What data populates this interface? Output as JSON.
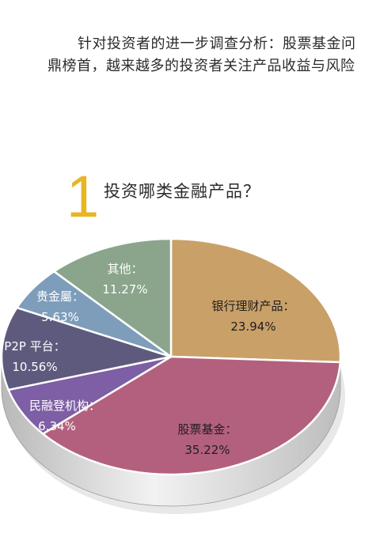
{
  "intro": "针对投资者的进一步调查分析：股票基金问鼎榜首，越来越多的投资者关注产品收益与风险",
  "question": {
    "number": "1",
    "title": "投资哪类金融产品？"
  },
  "chart_data": {
    "type": "pie",
    "style": "3d",
    "slices": [
      {
        "label": "银行理财产品：",
        "value": 23.94,
        "value_label": "23.94%",
        "color": "#c9a068"
      },
      {
        "label": "股票基金：",
        "value": 35.22,
        "value_label": "35.22%",
        "color": "#b3607e"
      },
      {
        "label": "民融登机构：",
        "value": 6.34,
        "value_label": "6.34%",
        "color": "#7e5ea4"
      },
      {
        "label": "P2P 平台：",
        "value": 10.56,
        "value_label": "10.56%",
        "color": "#5e5a7e"
      },
      {
        "label": "贵金屬：",
        "value": 5.63,
        "value_label": "5.63%",
        "color": "#7d9dbb"
      },
      {
        "label": "其他：",
        "value": 11.27,
        "value_label": "11.27%",
        "color": "#8aa58c"
      }
    ]
  }
}
